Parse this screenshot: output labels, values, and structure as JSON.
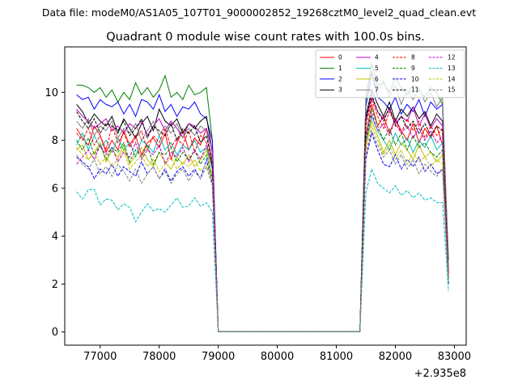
{
  "chart_data": {
    "type": "line",
    "suptitle": "Data file: modeM0/AS1A05_107T01_9000002852_19268cztM0_level2_quad_clean.evt",
    "title": "Quadrant 0 module wise count rates with 100.0s bins.",
    "xlabel": "",
    "ylabel": "",
    "x_offset_label": "+2.935e8",
    "xlim": [
      76400,
      83200
    ],
    "ylim": [
      -0.55,
      11.9
    ],
    "xticks": [
      77000,
      78000,
      79000,
      80000,
      81000,
      82000,
      83000
    ],
    "xtick_labels": [
      "77000",
      "78000",
      "79000",
      "80000",
      "81000",
      "82000",
      "83000"
    ],
    "yticks": [
      0,
      2,
      4,
      6,
      8,
      10
    ],
    "ytick_labels": [
      "0",
      "2",
      "4",
      "6",
      "8",
      "10"
    ],
    "grid": false,
    "legend_position": "top-right",
    "legend_columns": 4,
    "x": [
      76600,
      76700,
      76800,
      76900,
      77000,
      77100,
      77200,
      77300,
      77400,
      77500,
      77600,
      77700,
      77800,
      77900,
      78000,
      78100,
      78200,
      78300,
      78400,
      78500,
      78600,
      78700,
      78800,
      78900,
      79000,
      79100,
      79200,
      79300,
      79400,
      79500,
      79600,
      79700,
      79800,
      79900,
      80000,
      80100,
      80200,
      80300,
      80400,
      80500,
      80600,
      80700,
      80800,
      80900,
      81000,
      81100,
      81200,
      81300,
      81400,
      81500,
      81600,
      81700,
      81800,
      81900,
      82000,
      82100,
      82200,
      82300,
      82400,
      82500,
      82600,
      82700,
      82800,
      82900
    ],
    "series": [
      {
        "name": "0",
        "color": "#ff0000",
        "dash": "solid",
        "values": [
          8.5,
          8.1,
          7.8,
          8.6,
          8.2,
          7.5,
          8.0,
          7.6,
          8.4,
          7.8,
          8.2,
          7.4,
          7.9,
          8.1,
          7.7,
          8.3,
          7.2,
          7.9,
          8.4,
          7.6,
          8.1,
          7.8,
          8.5,
          7.0,
          0.02,
          0.02,
          0.02,
          0.02,
          0.02,
          0.02,
          0.02,
          0.02,
          0.02,
          0.02,
          0.02,
          0.02,
          0.02,
          0.02,
          0.02,
          0.02,
          0.02,
          0.02,
          0.02,
          0.02,
          0.02,
          0.02,
          0.02,
          0.02,
          0.02,
          8.2,
          9.5,
          8.6,
          9.0,
          8.3,
          8.9,
          8.4,
          8.0,
          8.7,
          7.9,
          8.5,
          8.1,
          8.6,
          7.8,
          2.4
        ]
      },
      {
        "name": "1",
        "color": "#008000",
        "dash": "solid",
        "values": [
          10.3,
          10.3,
          10.2,
          10.0,
          10.2,
          9.8,
          10.1,
          9.6,
          10.0,
          9.7,
          10.4,
          9.9,
          10.2,
          9.8,
          10.1,
          10.7,
          9.8,
          10.0,
          9.7,
          10.3,
          9.9,
          10.0,
          10.2,
          8.0,
          0.02,
          0.02,
          0.02,
          0.02,
          0.02,
          0.02,
          0.02,
          0.02,
          0.02,
          0.02,
          0.02,
          0.02,
          0.02,
          0.02,
          0.02,
          0.02,
          0.02,
          0.02,
          0.02,
          0.02,
          0.02,
          0.02,
          0.02,
          0.02,
          0.02,
          9.8,
          11.2,
          10.3,
          10.4,
          10.0,
          10.6,
          10.2,
          9.9,
          10.3,
          10.1,
          9.8,
          10.2,
          10.0,
          9.5,
          3.0
        ]
      },
      {
        "name": "2",
        "color": "#0000ff",
        "dash": "solid",
        "values": [
          9.9,
          9.7,
          9.8,
          9.3,
          9.7,
          9.5,
          9.4,
          9.6,
          9.1,
          9.5,
          9.0,
          9.7,
          9.6,
          9.3,
          9.9,
          9.2,
          9.5,
          9.0,
          9.4,
          9.3,
          9.6,
          9.1,
          8.9,
          8.0,
          0.02,
          0.02,
          0.02,
          0.02,
          0.02,
          0.02,
          0.02,
          0.02,
          0.02,
          0.02,
          0.02,
          0.02,
          0.02,
          0.02,
          0.02,
          0.02,
          0.02,
          0.02,
          0.02,
          0.02,
          0.02,
          0.02,
          0.02,
          0.02,
          0.02,
          9.4,
          10.8,
          9.8,
          9.6,
          9.3,
          9.8,
          9.1,
          9.5,
          9.2,
          9.7,
          9.0,
          9.6,
          9.3,
          9.5,
          2.0
        ]
      },
      {
        "name": "3",
        "color": "#000000",
        "dash": "solid",
        "values": [
          9.5,
          9.2,
          8.7,
          9.1,
          8.8,
          8.6,
          9.0,
          8.3,
          8.9,
          8.5,
          8.1,
          8.7,
          9.0,
          8.4,
          9.3,
          8.8,
          8.6,
          8.9,
          8.3,
          8.7,
          8.5,
          8.8,
          9.0,
          7.5,
          0.02,
          0.02,
          0.02,
          0.02,
          0.02,
          0.02,
          0.02,
          0.02,
          0.02,
          0.02,
          0.02,
          0.02,
          0.02,
          0.02,
          0.02,
          0.02,
          0.02,
          0.02,
          0.02,
          0.02,
          0.02,
          0.02,
          0.02,
          0.02,
          0.02,
          9.0,
          10.1,
          9.5,
          9.0,
          9.6,
          8.8,
          9.3,
          9.0,
          9.4,
          8.9,
          9.2,
          8.6,
          9.1,
          8.8,
          2.5
        ]
      },
      {
        "name": "4",
        "color": "#bf00bf",
        "dash": "solid",
        "values": [
          9.3,
          9.0,
          8.8,
          8.5,
          8.7,
          8.9,
          8.4,
          8.6,
          8.3,
          8.7,
          8.5,
          8.8,
          8.2,
          8.6,
          8.9,
          8.4,
          8.8,
          8.5,
          8.1,
          8.7,
          8.6,
          8.3,
          8.5,
          7.6,
          0.02,
          0.02,
          0.02,
          0.02,
          0.02,
          0.02,
          0.02,
          0.02,
          0.02,
          0.02,
          0.02,
          0.02,
          0.02,
          0.02,
          0.02,
          0.02,
          0.02,
          0.02,
          0.02,
          0.02,
          0.02,
          0.02,
          0.02,
          0.02,
          0.02,
          8.8,
          9.8,
          9.2,
          8.9,
          9.3,
          8.7,
          9.0,
          8.8,
          9.4,
          8.6,
          9.1,
          8.5,
          8.9,
          8.6,
          2.3
        ]
      },
      {
        "name": "5",
        "color": "#00bfbf",
        "dash": "solid",
        "values": [
          7.8,
          8.3,
          7.6,
          8.2,
          7.7,
          8.0,
          7.5,
          8.1,
          7.6,
          7.9,
          7.3,
          8.0,
          7.8,
          7.5,
          8.2,
          7.6,
          7.9,
          7.4,
          7.8,
          7.6,
          8.0,
          7.5,
          7.7,
          6.8,
          0.02,
          0.02,
          0.02,
          0.02,
          0.02,
          0.02,
          0.02,
          0.02,
          0.02,
          0.02,
          0.02,
          0.02,
          0.02,
          0.02,
          0.02,
          0.02,
          0.02,
          0.02,
          0.02,
          0.02,
          0.02,
          0.02,
          0.02,
          0.02,
          0.02,
          7.9,
          9.0,
          8.4,
          8.0,
          7.6,
          8.3,
          7.8,
          8.1,
          7.5,
          8.0,
          7.7,
          8.2,
          7.6,
          7.9,
          2.2
        ]
      },
      {
        "name": "6",
        "color": "#bfbf00",
        "dash": "solid",
        "values": [
          7.6,
          7.8,
          7.2,
          7.5,
          7.9,
          7.1,
          7.6,
          7.3,
          7.8,
          7.0,
          7.4,
          7.7,
          7.2,
          6.9,
          7.5,
          7.1,
          6.8,
          7.3,
          7.0,
          7.4,
          6.9,
          7.2,
          7.6,
          6.5,
          0.02,
          0.02,
          0.02,
          0.02,
          0.02,
          0.02,
          0.02,
          0.02,
          0.02,
          0.02,
          0.02,
          0.02,
          0.02,
          0.02,
          0.02,
          0.02,
          0.02,
          0.02,
          0.02,
          0.02,
          0.02,
          0.02,
          0.02,
          0.02,
          0.02,
          7.8,
          8.8,
          8.2,
          7.5,
          8.0,
          7.4,
          7.9,
          7.6,
          7.2,
          7.8,
          7.3,
          7.5,
          7.1,
          7.4,
          2.1
        ]
      },
      {
        "name": "7",
        "color": "#808080",
        "dash": "solid",
        "values": [
          8.8,
          8.5,
          8.9,
          8.2,
          8.6,
          8.4,
          8.8,
          8.1,
          8.5,
          8.3,
          8.7,
          8.0,
          8.4,
          8.8,
          8.2,
          8.6,
          8.3,
          8.7,
          8.1,
          8.5,
          8.2,
          8.6,
          8.4,
          7.2,
          0.02,
          0.02,
          0.02,
          0.02,
          0.02,
          0.02,
          0.02,
          0.02,
          0.02,
          0.02,
          0.02,
          0.02,
          0.02,
          0.02,
          0.02,
          0.02,
          0.02,
          0.02,
          0.02,
          0.02,
          0.02,
          0.02,
          0.02,
          0.02,
          0.02,
          9.6,
          10.9,
          10.0,
          10.5,
          9.8,
          10.3,
          9.5,
          10.1,
          9.7,
          10.2,
          9.6,
          10.0,
          9.4,
          9.8,
          2.6
        ]
      },
      {
        "name": "8",
        "color": "#ff0000",
        "dash": "dashed",
        "values": [
          8.3,
          8.0,
          8.5,
          7.8,
          8.2,
          7.6,
          8.6,
          7.9,
          8.3,
          7.7,
          8.1,
          8.4,
          7.6,
          8.2,
          7.9,
          8.5,
          7.7,
          8.1,
          7.8,
          8.4,
          7.5,
          8.2,
          7.9,
          6.9,
          0.02,
          0.02,
          0.02,
          0.02,
          0.02,
          0.02,
          0.02,
          0.02,
          0.02,
          0.02,
          0.02,
          0.02,
          0.02,
          0.02,
          0.02,
          0.02,
          0.02,
          0.02,
          0.02,
          0.02,
          0.02,
          0.02,
          0.02,
          0.02,
          0.02,
          8.6,
          9.7,
          9.0,
          8.5,
          9.2,
          8.7,
          8.3,
          8.9,
          8.4,
          8.8,
          8.1,
          8.6,
          8.2,
          8.5,
          2.3
        ]
      },
      {
        "name": "9",
        "color": "#008000",
        "dash": "dashed",
        "values": [
          8.0,
          7.6,
          8.1,
          7.4,
          7.8,
          7.2,
          7.7,
          7.5,
          7.9,
          7.1,
          7.6,
          7.3,
          7.8,
          7.0,
          7.5,
          7.4,
          7.7,
          7.1,
          7.5,
          7.2,
          7.6,
          7.0,
          7.4,
          6.4,
          0.02,
          0.02,
          0.02,
          0.02,
          0.02,
          0.02,
          0.02,
          0.02,
          0.02,
          0.02,
          0.02,
          0.02,
          0.02,
          0.02,
          0.02,
          0.02,
          0.02,
          0.02,
          0.02,
          0.02,
          0.02,
          0.02,
          0.02,
          0.02,
          0.02,
          8.1,
          9.3,
          8.6,
          8.0,
          8.5,
          7.8,
          8.3,
          7.6,
          8.2,
          7.7,
          7.9,
          7.5,
          7.3,
          7.6,
          2.2
        ]
      },
      {
        "name": "10",
        "color": "#0000ff",
        "dash": "dashed",
        "values": [
          7.3,
          7.1,
          6.9,
          6.4,
          6.8,
          6.6,
          7.0,
          6.5,
          6.9,
          6.7,
          6.5,
          7.1,
          6.6,
          6.9,
          6.4,
          6.8,
          6.3,
          6.7,
          6.9,
          6.5,
          6.8,
          6.4,
          7.2,
          6.2,
          0.02,
          0.02,
          0.02,
          0.02,
          0.02,
          0.02,
          0.02,
          0.02,
          0.02,
          0.02,
          0.02,
          0.02,
          0.02,
          0.02,
          0.02,
          0.02,
          0.02,
          0.02,
          0.02,
          0.02,
          0.02,
          0.02,
          0.02,
          0.02,
          0.02,
          7.2,
          8.3,
          7.6,
          7.0,
          6.9,
          7.4,
          6.8,
          7.2,
          6.9,
          7.3,
          6.7,
          7.0,
          6.6,
          6.8,
          2.0
        ]
      },
      {
        "name": "11",
        "color": "#000000",
        "dash": "dashed",
        "values": [
          9.2,
          8.8,
          8.5,
          8.9,
          8.3,
          8.7,
          8.6,
          8.4,
          8.8,
          8.2,
          8.5,
          8.9,
          8.1,
          8.6,
          8.4,
          8.2,
          8.7,
          8.0,
          8.5,
          8.3,
          8.6,
          7.9,
          8.2,
          7.0,
          0.02,
          0.02,
          0.02,
          0.02,
          0.02,
          0.02,
          0.02,
          0.02,
          0.02,
          0.02,
          0.02,
          0.02,
          0.02,
          0.02,
          0.02,
          0.02,
          0.02,
          0.02,
          0.02,
          0.02,
          0.02,
          0.02,
          0.02,
          0.02,
          0.02,
          8.9,
          9.9,
          9.2,
          8.8,
          9.4,
          8.6,
          9.0,
          8.5,
          8.8,
          8.3,
          8.7,
          8.2,
          8.6,
          8.4,
          2.4
        ]
      },
      {
        "name": "12",
        "color": "#bf00bf",
        "dash": "dashed",
        "values": [
          7.0,
          7.3,
          7.6,
          7.2,
          7.8,
          7.4,
          7.7,
          7.1,
          7.5,
          7.3,
          7.9,
          7.2,
          7.6,
          7.4,
          7.8,
          7.0,
          7.5,
          7.3,
          7.7,
          7.1,
          7.6,
          7.2,
          7.8,
          6.9,
          0.02,
          0.02,
          0.02,
          0.02,
          0.02,
          0.02,
          0.02,
          0.02,
          0.02,
          0.02,
          0.02,
          0.02,
          0.02,
          0.02,
          0.02,
          0.02,
          0.02,
          0.02,
          0.02,
          0.02,
          0.02,
          0.02,
          0.02,
          0.02,
          0.02,
          8.0,
          9.1,
          8.4,
          8.7,
          8.2,
          8.9,
          8.3,
          8.6,
          8.1,
          8.5,
          8.0,
          8.4,
          7.9,
          8.2,
          2.3
        ]
      },
      {
        "name": "13",
        "color": "#00bfbf",
        "dash": "dashed",
        "values": [
          5.85,
          5.55,
          5.95,
          5.95,
          5.3,
          5.55,
          5.5,
          5.1,
          5.35,
          5.2,
          4.6,
          5.0,
          5.35,
          5.05,
          5.15,
          5.0,
          5.3,
          5.6,
          5.2,
          5.25,
          5.6,
          5.25,
          5.4,
          5.0,
          0.02,
          0.02,
          0.02,
          0.02,
          0.02,
          0.02,
          0.02,
          0.02,
          0.02,
          0.02,
          0.02,
          0.02,
          0.02,
          0.02,
          0.02,
          0.02,
          0.02,
          0.02,
          0.02,
          0.02,
          0.02,
          0.02,
          0.02,
          0.02,
          0.02,
          5.8,
          6.8,
          6.2,
          6.0,
          5.8,
          6.1,
          5.7,
          5.9,
          5.6,
          5.8,
          5.5,
          5.6,
          5.4,
          5.4,
          1.7
        ]
      },
      {
        "name": "14",
        "color": "#bfbf00",
        "dash": "dashed",
        "values": [
          7.7,
          7.4,
          7.2,
          7.5,
          7.0,
          7.3,
          6.9,
          7.2,
          7.6,
          6.8,
          7.1,
          7.4,
          6.9,
          7.2,
          6.7,
          7.0,
          7.3,
          6.8,
          7.1,
          6.9,
          7.2,
          6.7,
          7.0,
          6.3,
          0.02,
          0.02,
          0.02,
          0.02,
          0.02,
          0.02,
          0.02,
          0.02,
          0.02,
          0.02,
          0.02,
          0.02,
          0.02,
          0.02,
          0.02,
          0.02,
          0.02,
          0.02,
          0.02,
          0.02,
          0.02,
          0.02,
          0.02,
          0.02,
          0.02,
          7.6,
          8.6,
          8.0,
          7.4,
          7.8,
          7.2,
          7.6,
          7.0,
          7.5,
          7.1,
          7.3,
          6.9,
          7.2,
          7.0,
          2.1
        ]
      },
      {
        "name": "15",
        "color": "#808080",
        "dash": "dashed",
        "values": [
          7.4,
          7.0,
          6.8,
          7.2,
          6.6,
          6.9,
          6.5,
          7.0,
          6.7,
          6.3,
          6.8,
          6.2,
          6.6,
          6.9,
          6.4,
          6.7,
          6.2,
          6.6,
          6.8,
          6.3,
          6.7,
          6.4,
          6.9,
          6.1,
          0.02,
          0.02,
          0.02,
          0.02,
          0.02,
          0.02,
          0.02,
          0.02,
          0.02,
          0.02,
          0.02,
          0.02,
          0.02,
          0.02,
          0.02,
          0.02,
          0.02,
          0.02,
          0.02,
          0.02,
          0.02,
          0.02,
          0.02,
          0.02,
          0.02,
          7.4,
          8.4,
          7.8,
          7.3,
          7.6,
          7.0,
          7.4,
          6.8,
          7.2,
          6.6,
          7.0,
          6.7,
          6.5,
          6.8,
          2.0
        ]
      }
    ]
  }
}
